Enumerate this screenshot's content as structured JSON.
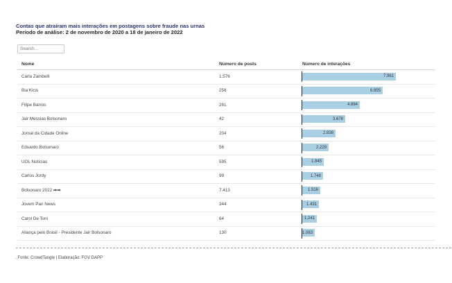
{
  "header": {
    "title": "Contas que atraíram mais interações em postagens sobre fraude nas urnas",
    "subtitle": "Período de análise: 2 de novembro de 2020 a 18 de janeiro de 2022"
  },
  "search": {
    "placeholder": "Search..."
  },
  "table": {
    "columns": {
      "name": "Nome",
      "posts": "Número de posts",
      "interactions": "Número de interações"
    },
    "max_interactions": 7961,
    "rows": [
      {
        "name": "Carla Zambelli",
        "posts": "1.576",
        "interactions": 7961,
        "label": "7.961"
      },
      {
        "name": "Bia Kicis",
        "posts": "256",
        "interactions": 6855,
        "label": "6.855"
      },
      {
        "name": "Filipe Barros",
        "posts": "261",
        "interactions": 4884,
        "label": "4.884"
      },
      {
        "name": "Jair Messias Bolsonaro",
        "posts": "42",
        "interactions": 3678,
        "label": "3.678"
      },
      {
        "name": "Jornal da Cidade Online",
        "posts": "204",
        "interactions": 2838,
        "label": "2.838"
      },
      {
        "name": "Eduardo Bolsonaro",
        "posts": "56",
        "interactions": 2229,
        "label": "2.229"
      },
      {
        "name": "UOL Notícias",
        "posts": "595",
        "interactions": 1845,
        "label": "1.845"
      },
      {
        "name": "Carlos Jordy",
        "posts": "99",
        "interactions": 1748,
        "label": "1.748"
      },
      {
        "name": "Bolsonaro 2022 ➡➡",
        "posts": "7.413",
        "interactions": 1516,
        "label": "1.516"
      },
      {
        "name": "Jovem Pan News",
        "posts": "344",
        "interactions": 1431,
        "label": "1.431"
      },
      {
        "name": "Carol De Toni",
        "posts": "64",
        "interactions": 1241,
        "label": "1.241"
      },
      {
        "name": "Aliança pelo Brasil - Presidente Jair Bolsonaro",
        "posts": "130",
        "interactions": 1083,
        "label": "1.083"
      }
    ]
  },
  "footer": {
    "source": ". Fonte: CrowdTangle | Elaboração: FGV DAPP"
  },
  "colors": {
    "bar": "#a9cfe4",
    "title": "#2b2f6b"
  }
}
